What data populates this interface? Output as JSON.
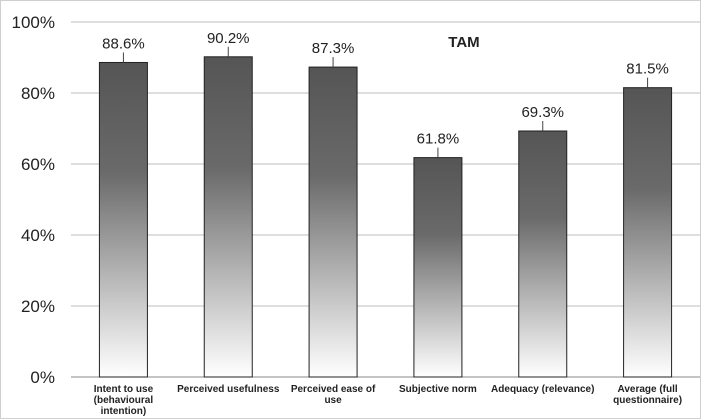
{
  "chart_data": {
    "type": "bar",
    "title": "TAM",
    "xlabel": "",
    "ylabel": "",
    "ylim": [
      0,
      100
    ],
    "yticks": [
      "0%",
      "20%",
      "40%",
      "60%",
      "80%",
      "100%"
    ],
    "grid": true,
    "legend": "none",
    "categories": [
      [
        "Intent to use",
        "(behavioural",
        "intention)"
      ],
      [
        "Perceived usefulness"
      ],
      [
        "Perceived ease of",
        "use"
      ],
      [
        "Subjective norm"
      ],
      [
        "Adequacy (relevance)"
      ],
      [
        "Average (full",
        "questionnaire)"
      ]
    ],
    "values": [
      88.6,
      90.2,
      87.3,
      61.8,
      69.3,
      81.5
    ],
    "data_labels": [
      "88.6%",
      "90.2%",
      "87.3%",
      "61.8%",
      "69.3%",
      "81.5%"
    ],
    "colors": {
      "bar_top": "#555555",
      "bar_bottom": "#ffffff",
      "grid": "#bdbdbd",
      "axis": "#888888"
    }
  }
}
